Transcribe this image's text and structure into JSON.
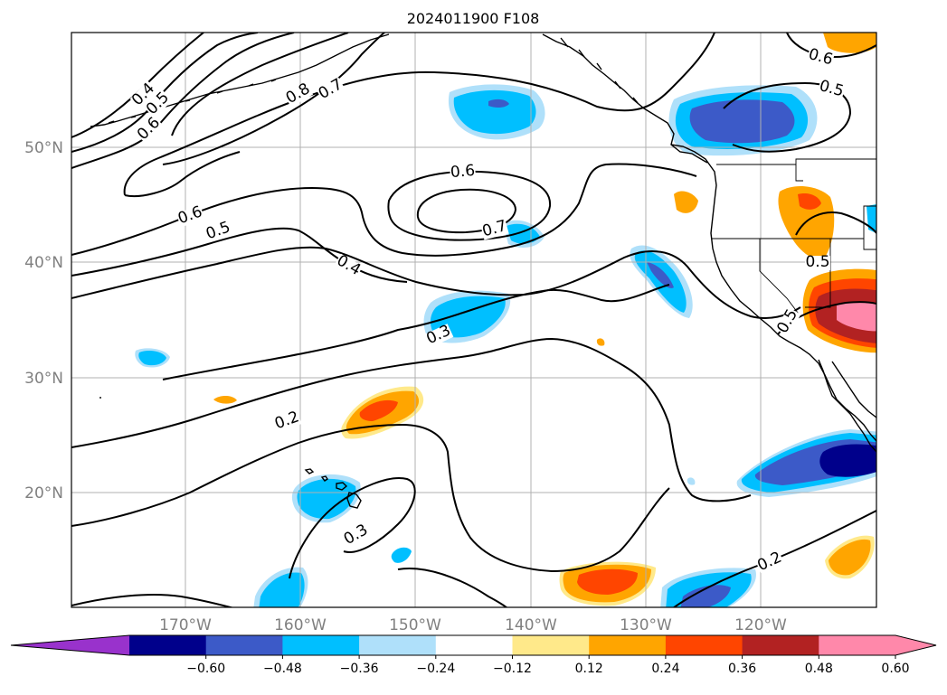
{
  "title": "2024011900 F108",
  "lat_labels": [
    "50°N",
    "40°N",
    "30°N",
    "20°N"
  ],
  "lon_labels": [
    "170°W",
    "160°W",
    "150°W",
    "140°W",
    "130°W",
    "120°W"
  ],
  "contour_labels": [
    "0.4",
    "0.5",
    "0.6",
    "0.8",
    "0.7",
    "0.6",
    "0.5",
    "0.6",
    "0.7",
    "0.4",
    "0.3",
    "0.2",
    "0.3",
    "0.2",
    "0.6",
    "0.5",
    "0.5",
    "0.5"
  ],
  "colorbar": {
    "ticks": [
      "−0.60",
      "−0.48",
      "−0.36",
      "−0.24",
      "−0.12",
      "0.12",
      "0.24",
      "0.36",
      "0.48",
      "0.60"
    ],
    "colors": [
      "#9932cc",
      "#00008b",
      "#3c5ac8",
      "#00bfff",
      "#afe0fa",
      "#ffffff",
      "#ffe98a",
      "#ffa500",
      "#ff4500",
      "#b22222",
      "#ff88aa",
      "#ff88aa"
    ]
  },
  "legend_colors": {
    "dark_navy": "#00008b",
    "royal_blue": "#3c5ac8",
    "sky_blue": "#00bfff",
    "light_blue": "#afe0fa",
    "light_yellow": "#ffe98a",
    "orange": "#ffa500",
    "red_orange": "#ff4500",
    "brick_red": "#b22222",
    "pink": "#ff88aa"
  }
}
